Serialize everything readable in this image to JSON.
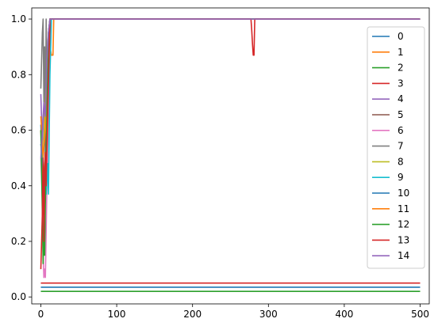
{
  "chart_data": {
    "type": "line",
    "title": "",
    "xlabel": "",
    "ylabel": "",
    "xlim": [
      -12,
      512
    ],
    "ylim": [
      -0.025,
      1.04
    ],
    "x_ticks": [
      0,
      100,
      200,
      300,
      400,
      500
    ],
    "y_ticks": [
      0.0,
      0.2,
      0.4,
      0.6,
      0.8,
      1.0
    ],
    "x_tick_labels": [
      "0",
      "100",
      "200",
      "300",
      "400",
      "500"
    ],
    "y_tick_labels": [
      "0.0",
      "0.2",
      "0.4",
      "0.6",
      "0.8",
      "1.0"
    ],
    "grid": false,
    "legend_position": "right",
    "series": [
      {
        "name": "0",
        "color": "#1f77b4",
        "x": [
          0,
          2,
          4,
          6,
          8,
          10,
          12,
          500
        ],
        "y": [
          0.62,
          0.45,
          0.3,
          0.55,
          0.8,
          0.95,
          1.0,
          1.0
        ]
      },
      {
        "name": "1",
        "color": "#ff7f0e",
        "x": [
          0,
          3,
          6,
          9,
          12,
          14,
          16,
          17,
          18,
          500
        ],
        "y": [
          0.6,
          0.4,
          0.5,
          0.7,
          0.9,
          0.87,
          0.87,
          1.0,
          1.0,
          1.0
        ]
      },
      {
        "name": "2",
        "color": "#2ca02c",
        "x": [
          0,
          500
        ],
        "y": [
          0.02,
          0.02
        ]
      },
      {
        "name": "3",
        "color": "#d62728",
        "x": [
          0,
          500
        ],
        "y": [
          0.05,
          0.05
        ]
      },
      {
        "name": "4",
        "color": "#9467bd",
        "x": [
          0,
          2,
          4,
          6,
          8,
          10,
          12,
          500
        ],
        "y": [
          0.73,
          0.55,
          0.68,
          0.62,
          0.8,
          0.95,
          1.0,
          1.0
        ]
      },
      {
        "name": "5",
        "color": "#8c564b",
        "x": [
          0,
          3,
          5,
          7,
          9,
          11,
          13,
          500
        ],
        "y": [
          0.55,
          0.5,
          0.3,
          0.6,
          0.85,
          0.73,
          1.0,
          1.0
        ]
      },
      {
        "name": "6",
        "color": "#e377c2",
        "x": [
          0,
          2,
          3,
          4,
          5,
          6,
          8,
          10,
          12,
          500
        ],
        "y": [
          0.5,
          0.35,
          0.15,
          0.07,
          0.1,
          0.07,
          0.4,
          0.7,
          1.0,
          1.0
        ]
      },
      {
        "name": "7",
        "color": "#7f7f7f",
        "x": [
          0,
          2,
          3,
          4,
          5,
          6,
          7,
          8,
          10,
          12,
          500
        ],
        "y": [
          0.75,
          0.95,
          1.0,
          0.7,
          0.9,
          0.6,
          1.0,
          0.8,
          0.95,
          1.0,
          1.0
        ]
      },
      {
        "name": "8",
        "color": "#bcbd22",
        "x": [
          0,
          3,
          6,
          9,
          12,
          500
        ],
        "y": [
          0.6,
          0.5,
          0.7,
          0.85,
          1.0,
          1.0
        ]
      },
      {
        "name": "9",
        "color": "#17becf",
        "x": [
          0,
          4,
          7,
          9,
          10,
          12,
          14,
          500
        ],
        "y": [
          0.55,
          0.42,
          0.37,
          0.48,
          0.37,
          0.8,
          1.0,
          1.0
        ]
      },
      {
        "name": "10",
        "color": "#1f77b4",
        "x": [
          0,
          500
        ],
        "y": [
          0.035,
          0.035
        ]
      },
      {
        "name": "11",
        "color": "#ff7f0e",
        "x": [
          0,
          3,
          6,
          9,
          12,
          500
        ],
        "y": [
          0.65,
          0.5,
          0.6,
          0.85,
          1.0,
          1.0
        ]
      },
      {
        "name": "12",
        "color": "#2ca02c",
        "x": [
          0,
          2,
          3,
          4,
          5,
          6,
          7,
          9,
          12,
          500
        ],
        "y": [
          0.6,
          0.3,
          0.12,
          0.23,
          0.15,
          0.35,
          0.5,
          0.8,
          1.0,
          1.0
        ]
      },
      {
        "name": "13",
        "color": "#d62728",
        "x": [
          0,
          2,
          3,
          4,
          5,
          6,
          7,
          9,
          12,
          277,
          278,
          279,
          280,
          281,
          282,
          500
        ],
        "y": [
          0.1,
          0.3,
          0.5,
          0.2,
          0.45,
          0.52,
          0.4,
          0.65,
          1.0,
          1.0,
          0.96,
          0.91,
          0.87,
          0.87,
          1.0,
          1.0
        ]
      },
      {
        "name": "14",
        "color": "#9467bd",
        "x": [
          0,
          2,
          4,
          6,
          8,
          10,
          12,
          500
        ],
        "y": [
          0.5,
          0.6,
          0.7,
          0.65,
          0.85,
          0.95,
          1.0,
          1.0
        ]
      }
    ]
  }
}
